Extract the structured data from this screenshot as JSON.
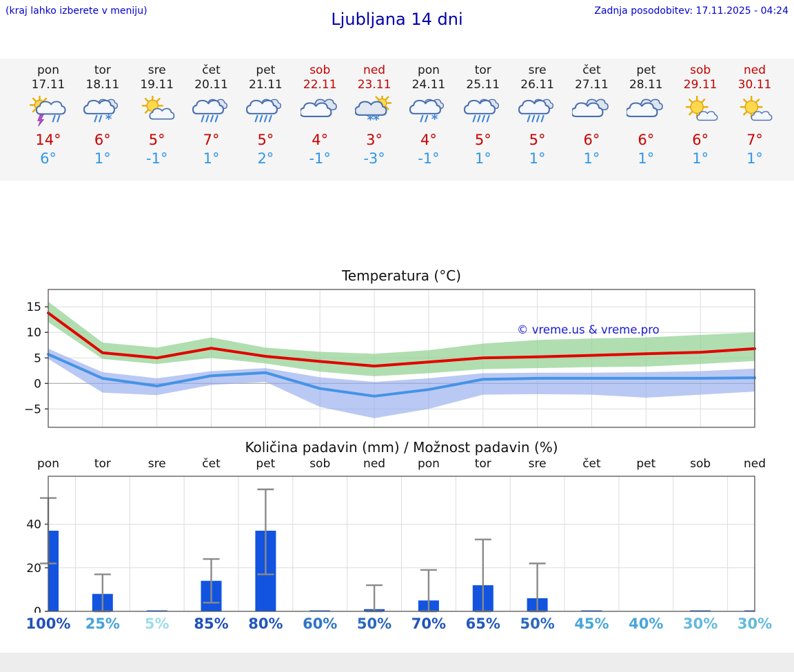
{
  "header": {
    "note_left": "(kraj lahko izberete v meniju)",
    "title": "Ljubljana 14 dni",
    "last_update": "Zadnja posodobitev: 17.11.2025 - 04:24"
  },
  "days": [
    {
      "name": "pon",
      "date": "17.11",
      "weekend": false,
      "icon": "storm-sun",
      "tmax": "14°",
      "tmin": "6°"
    },
    {
      "name": "tor",
      "date": "18.11",
      "weekend": false,
      "icon": "rain-sleet",
      "tmax": "6°",
      "tmin": "1°"
    },
    {
      "name": "sre",
      "date": "19.11",
      "weekend": false,
      "icon": "sun-cloud",
      "tmax": "5°",
      "tmin": "-1°"
    },
    {
      "name": "čet",
      "date": "20.11",
      "weekend": false,
      "icon": "heavy-rain",
      "tmax": "7°",
      "tmin": "1°"
    },
    {
      "name": "pet",
      "date": "21.11",
      "weekend": false,
      "icon": "heavy-rain",
      "tmax": "5°",
      "tmin": "2°"
    },
    {
      "name": "sob",
      "date": "22.11",
      "weekend": true,
      "icon": "cloud",
      "tmax": "4°",
      "tmin": "-1°"
    },
    {
      "name": "ned",
      "date": "23.11",
      "weekend": true,
      "icon": "snow-sun",
      "tmax": "3°",
      "tmin": "-3°"
    },
    {
      "name": "pon",
      "date": "24.11",
      "weekend": false,
      "icon": "rain-sleet",
      "tmax": "4°",
      "tmin": "-1°"
    },
    {
      "name": "tor",
      "date": "25.11",
      "weekend": false,
      "icon": "heavy-rain",
      "tmax": "5°",
      "tmin": "1°"
    },
    {
      "name": "sre",
      "date": "26.11",
      "weekend": false,
      "icon": "heavy-rain",
      "tmax": "5°",
      "tmin": "1°"
    },
    {
      "name": "čet",
      "date": "27.11",
      "weekend": false,
      "icon": "cloud",
      "tmax": "6°",
      "tmin": "1°"
    },
    {
      "name": "pet",
      "date": "28.11",
      "weekend": false,
      "icon": "cloud",
      "tmax": "6°",
      "tmin": "1°"
    },
    {
      "name": "sob",
      "date": "29.11",
      "weekend": true,
      "icon": "sun-cloud-small",
      "tmax": "6°",
      "tmin": "1°"
    },
    {
      "name": "ned",
      "date": "30.11",
      "weekend": true,
      "icon": "sun-cloud-small",
      "tmax": "7°",
      "tmin": "1°"
    }
  ],
  "chart_data": [
    {
      "type": "line",
      "title": "Temperatura (°C)",
      "x": [
        "17.11",
        "18.11",
        "19.11",
        "20.11",
        "21.11",
        "22.11",
        "23.11",
        "24.11",
        "25.11",
        "26.11",
        "27.11",
        "28.11",
        "29.11",
        "30.11"
      ],
      "ylim": [
        -8.6,
        18.4
      ],
      "yticks": [
        -5,
        0,
        5,
        10,
        15
      ],
      "grid": true,
      "legend": "none",
      "watermark": "© vreme.us & vreme.pro",
      "watermark_color": "#1a1ad0",
      "series": [
        {
          "name": "max-temp",
          "color": "#e30000",
          "values": [
            13.8,
            6.0,
            5.0,
            6.9,
            5.3,
            4.3,
            3.4,
            4.2,
            5.0,
            5.2,
            5.5,
            5.8,
            6.1,
            6.8
          ]
        },
        {
          "name": "min-temp",
          "color": "#4593e6",
          "values": [
            5.7,
            1.0,
            -0.5,
            1.5,
            2.1,
            -1.0,
            -2.5,
            -1.2,
            0.8,
            1.0,
            1.0,
            1.0,
            1.0,
            1.1
          ]
        }
      ],
      "bands": [
        {
          "name": "max-temp-range",
          "color": "#8fd08f",
          "opacity": 0.7,
          "upper": [
            16.0,
            8.0,
            7.0,
            9.0,
            7.0,
            6.2,
            5.8,
            6.5,
            7.8,
            8.5,
            8.8,
            9.0,
            9.5,
            10.0
          ],
          "lower": [
            12.0,
            4.8,
            3.8,
            5.0,
            3.9,
            2.3,
            1.4,
            2.0,
            2.8,
            3.0,
            3.2,
            3.3,
            3.8,
            4.4
          ]
        },
        {
          "name": "min-temp-range",
          "color": "#8fa8ec",
          "opacity": 0.62,
          "upper": [
            6.8,
            2.2,
            1.0,
            2.4,
            3.0,
            1.2,
            0.3,
            1.0,
            2.0,
            2.1,
            2.1,
            2.2,
            2.4,
            2.9
          ],
          "lower": [
            4.8,
            -1.8,
            -2.3,
            -0.3,
            0.3,
            -4.6,
            -6.8,
            -5.0,
            -2.2,
            -2.1,
            -2.2,
            -2.8,
            -2.2,
            -1.6
          ]
        }
      ]
    },
    {
      "type": "bar",
      "title": "Količina padavin (mm) / Možnost padavin (%)",
      "categories": [
        "pon",
        "tor",
        "sre",
        "čet",
        "pet",
        "sob",
        "ned",
        "pon",
        "tor",
        "sre",
        "čet",
        "pet",
        "sob",
        "ned"
      ],
      "values": [
        37,
        8,
        0.3,
        14,
        37,
        0.3,
        1,
        5,
        12,
        6,
        0.3,
        0,
        0.4,
        0.3
      ],
      "whiskers": [
        [
          22,
          52
        ],
        [
          0,
          17
        ],
        null,
        [
          4,
          24
        ],
        [
          17,
          56
        ],
        null,
        [
          0,
          12
        ],
        [
          0,
          19
        ],
        [
          0,
          33
        ],
        [
          0,
          22
        ],
        null,
        null,
        null,
        null
      ],
      "bar_color": "#1254e0",
      "whisker_color": "#8a8a8a",
      "ylim": [
        0,
        62
      ],
      "yticks": [
        0,
        20,
        40
      ],
      "probabilities": [
        {
          "label": "100%",
          "color": "#2050b8"
        },
        {
          "label": "25%",
          "color": "#45a3d9"
        },
        {
          "label": "5%",
          "color": "#9fdde9"
        },
        {
          "label": "85%",
          "color": "#2050b8"
        },
        {
          "label": "80%",
          "color": "#2356bb"
        },
        {
          "label": "60%",
          "color": "#2e74c6"
        },
        {
          "label": "50%",
          "color": "#2a67c0"
        },
        {
          "label": "70%",
          "color": "#2153b9"
        },
        {
          "label": "65%",
          "color": "#2459bc"
        },
        {
          "label": "50%",
          "color": "#2a67c0"
        },
        {
          "label": "45%",
          "color": "#4aa6da"
        },
        {
          "label": "40%",
          "color": "#4aa6da"
        },
        {
          "label": "30%",
          "color": "#63b9df"
        },
        {
          "label": "30%",
          "color": "#63b9df"
        }
      ]
    }
  ]
}
